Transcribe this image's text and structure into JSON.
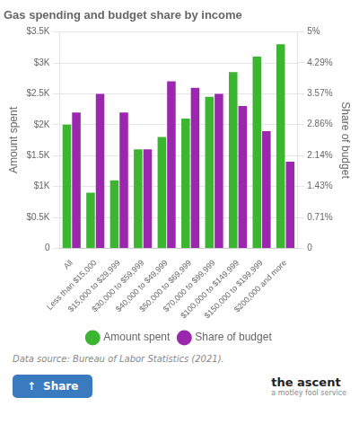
{
  "chart_data": {
    "type": "bar",
    "title": "Gas spending and budget share by income",
    "categories": [
      "All",
      "Less than $15,000",
      "$15,000 to $29,999",
      "$30,000 to $59,999",
      "$40,000 to $49,999",
      "$50,000 to $69,999",
      "$70,000 to $99,999",
      "$100,000 to $149,999",
      "$150,000 to $199,999",
      "$200,000 and more"
    ],
    "series": [
      {
        "name": "Amount spent",
        "color": "#3cb531",
        "values": [
          2000,
          900,
          1100,
          1600,
          1800,
          2100,
          2450,
          2850,
          3100,
          3300
        ]
      },
      {
        "name": "Share of budget",
        "color": "#9b27af",
        "axis": "y2",
        "values": [
          3.14,
          3.57,
          3.14,
          2.29,
          3.86,
          3.71,
          3.57,
          3.29,
          2.71,
          2.0
        ]
      }
    ],
    "ylabel": "Amount spent",
    "y2label": "Share of budget",
    "ylim": [
      0,
      3500
    ],
    "yticks": [
      0,
      {
        "value": 500,
        "label": "$0.5K"
      },
      {
        "value": 1000,
        "label": "$1K"
      },
      {
        "value": 1500,
        "label": "$1.5K"
      },
      {
        "value": 2000,
        "label": "$2K"
      },
      {
        "value": 2500,
        "label": "$2.5K"
      },
      {
        "value": 3000,
        "label": "$3K"
      },
      {
        "value": 3500,
        "label": "$3.5K"
      }
    ],
    "y2lim": [
      0,
      5
    ],
    "y2ticks": [
      0,
      {
        "value": 0.71,
        "label": "0.71%"
      },
      {
        "value": 1.43,
        "label": "1.43%"
      },
      {
        "value": 2.14,
        "label": "2.14%"
      },
      {
        "value": 2.86,
        "label": "2.86%"
      },
      {
        "value": 3.57,
        "label": "3.57%"
      },
      {
        "value": 4.29,
        "label": "4.29%"
      },
      {
        "value": 5.0,
        "label": "5%"
      }
    ],
    "grid": true,
    "legend": "bottom",
    "annotations": [
      "Data source: Bureau of Labor Statistics (2021).",
      "↑",
      "Share",
      "the ascent",
      "a motley fool service"
    ]
  }
}
